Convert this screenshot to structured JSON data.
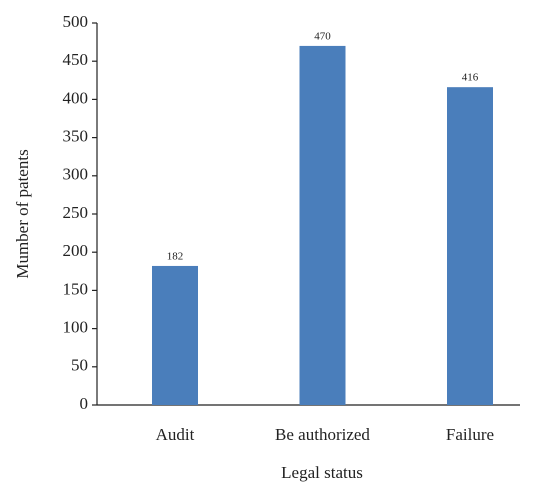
{
  "chart_data": {
    "type": "bar",
    "categories": [
      "Audit",
      "Be authorized",
      "Failure"
    ],
    "values": [
      182,
      470,
      416
    ],
    "color": "#4a7ebb",
    "xlabel": "Legal status",
    "ylabel": "Mumber of patents",
    "ylim": [
      0,
      500
    ],
    "yticks": [
      0,
      50,
      100,
      150,
      200,
      250,
      300,
      350,
      400,
      450,
      500
    ],
    "grid": false
  }
}
